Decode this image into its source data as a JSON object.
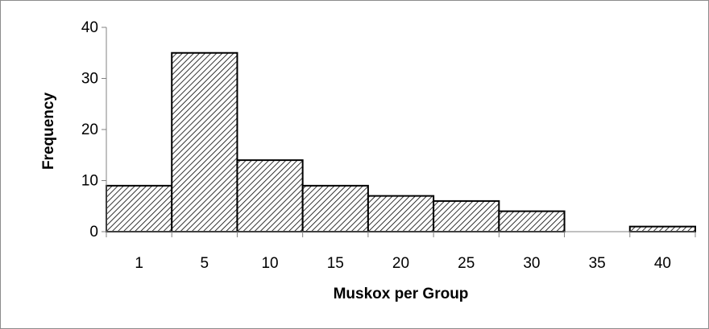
{
  "chart_data": {
    "type": "bar",
    "title": "",
    "xlabel": "Muskox per Group",
    "ylabel": "Frequency",
    "categories": [
      "1",
      "5",
      "10",
      "15",
      "20",
      "25",
      "30",
      "35",
      "40"
    ],
    "values": [
      9,
      35,
      14,
      9,
      7,
      6,
      4,
      0,
      1
    ],
    "ylim": [
      0,
      40
    ],
    "yticks": [
      0,
      10,
      20,
      30,
      40
    ],
    "grid": false,
    "legend": "none",
    "bar_fill": "diagonal-hatch",
    "colors": {
      "bar_stroke": "#000000",
      "hatch": "#000000",
      "axis": "#808080",
      "frame": "#8c8c8c",
      "background": "#ffffff"
    }
  }
}
